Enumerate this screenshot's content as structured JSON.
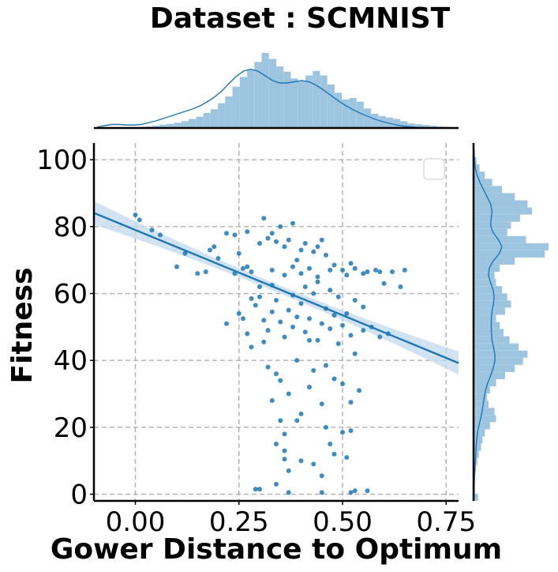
{
  "chart_data": {
    "type": "scatter",
    "title": "Dataset :  SCMNIST",
    "xlabel": "Gower Distance to Optimum",
    "ylabel": "Fitness",
    "xlim": [
      -0.1,
      0.78
    ],
    "ylim": [
      -2,
      105
    ],
    "xticks": [
      "0.00",
      "0.25",
      "0.50",
      "0.75"
    ],
    "xtick_values": [
      0.0,
      0.25,
      0.5,
      0.75
    ],
    "yticks": [
      "0",
      "20",
      "40",
      "60",
      "80",
      "100"
    ],
    "ytick_values": [
      0,
      20,
      40,
      60,
      80,
      100
    ],
    "grid": true,
    "grid_style": "dashed",
    "legend": "top-right (empty box)",
    "colors": {
      "points": "#1f77b4",
      "hist": "#9ec5e0",
      "band": "#c6dbef",
      "grid": "#b0b0b0",
      "axis": "#000000"
    },
    "regression": {
      "slope": -51.0,
      "intercept": 79.0,
      "ci_halfwidth_center": 1.2,
      "ci_halfwidth_edge": 3.5
    },
    "points": [
      [
        0.0,
        83.5
      ],
      [
        0.01,
        82.0
      ],
      [
        0.04,
        79.0
      ],
      [
        0.06,
        77.5
      ],
      [
        0.1,
        68.0
      ],
      [
        0.12,
        72.0
      ],
      [
        0.15,
        66.0
      ],
      [
        0.17,
        66.5
      ],
      [
        0.18,
        73.0
      ],
      [
        0.19,
        74.0
      ],
      [
        0.2,
        70.5
      ],
      [
        0.22,
        78.0
      ],
      [
        0.24,
        77.5
      ],
      [
        0.25,
        72.0
      ],
      [
        0.26,
        67.5
      ],
      [
        0.27,
        78.5
      ],
      [
        0.28,
        66.5
      ],
      [
        0.3,
        75.0
      ],
      [
        0.31,
        82.5
      ],
      [
        0.32,
        76.5
      ],
      [
        0.33,
        78.0
      ],
      [
        0.34,
        75.5
      ],
      [
        0.35,
        80.0
      ],
      [
        0.36,
        74.0
      ],
      [
        0.37,
        76.0
      ],
      [
        0.38,
        81.0
      ],
      [
        0.39,
        70.0
      ],
      [
        0.4,
        73.0
      ],
      [
        0.41,
        75.0
      ],
      [
        0.43,
        72.5
      ],
      [
        0.44,
        74.0
      ],
      [
        0.45,
        76.0
      ],
      [
        0.46,
        71.5
      ],
      [
        0.47,
        67.0
      ],
      [
        0.5,
        67.0
      ],
      [
        0.53,
        67.5
      ],
      [
        0.56,
        66.5
      ],
      [
        0.59,
        66.5
      ],
      [
        0.6,
        63.0
      ],
      [
        0.62,
        66.5
      ],
      [
        0.64,
        62.0
      ],
      [
        0.65,
        67.0
      ],
      [
        0.24,
        66.0
      ],
      [
        0.27,
        68.0
      ],
      [
        0.33,
        67.0
      ],
      [
        0.36,
        65.5
      ],
      [
        0.38,
        68.0
      ],
      [
        0.4,
        66.0
      ],
      [
        0.42,
        67.5
      ],
      [
        0.44,
        65.0
      ],
      [
        0.48,
        68.5
      ],
      [
        0.51,
        65.5
      ],
      [
        0.52,
        69.0
      ],
      [
        0.55,
        66.0
      ],
      [
        0.58,
        67.0
      ],
      [
        0.22,
        51.0
      ],
      [
        0.25,
        54.0
      ],
      [
        0.27,
        48.0
      ],
      [
        0.28,
        44.0
      ],
      [
        0.29,
        56.5
      ],
      [
        0.3,
        59.0
      ],
      [
        0.31,
        52.0
      ],
      [
        0.32,
        49.0
      ],
      [
        0.33,
        54.5
      ],
      [
        0.34,
        58.0
      ],
      [
        0.35,
        51.5
      ],
      [
        0.36,
        47.0
      ],
      [
        0.37,
        55.0
      ],
      [
        0.38,
        50.0
      ],
      [
        0.39,
        53.0
      ],
      [
        0.4,
        57.0
      ],
      [
        0.41,
        48.5
      ],
      [
        0.42,
        52.5
      ],
      [
        0.43,
        60.0
      ],
      [
        0.44,
        46.0
      ],
      [
        0.45,
        51.0
      ],
      [
        0.46,
        55.5
      ],
      [
        0.47,
        49.5
      ],
      [
        0.48,
        53.5
      ],
      [
        0.49,
        45.0
      ],
      [
        0.5,
        50.5
      ],
      [
        0.51,
        54.0
      ],
      [
        0.52,
        47.5
      ],
      [
        0.53,
        42.0
      ],
      [
        0.55,
        49.0
      ],
      [
        0.57,
        50.0
      ],
      [
        0.59,
        47.0
      ],
      [
        0.61,
        48.0
      ],
      [
        0.32,
        38.0
      ],
      [
        0.34,
        36.0
      ],
      [
        0.35,
        34.0
      ],
      [
        0.37,
        30.0
      ],
      [
        0.39,
        40.0
      ],
      [
        0.4,
        24.0
      ],
      [
        0.42,
        32.0
      ],
      [
        0.43,
        37.0
      ],
      [
        0.45,
        27.0
      ],
      [
        0.46,
        38.5
      ],
      [
        0.48,
        34.5
      ],
      [
        0.5,
        33.0
      ],
      [
        0.52,
        27.5
      ],
      [
        0.54,
        31.0
      ],
      [
        0.33,
        28.0
      ],
      [
        0.35,
        22.0
      ],
      [
        0.36,
        13.0
      ],
      [
        0.37,
        7.0
      ],
      [
        0.34,
        15.0
      ],
      [
        0.36,
        18.0
      ],
      [
        0.4,
        10.0
      ],
      [
        0.43,
        9.0
      ],
      [
        0.45,
        5.5
      ],
      [
        0.46,
        20.0
      ],
      [
        0.47,
        15.0
      ],
      [
        0.48,
        12.0
      ],
      [
        0.5,
        18.5
      ],
      [
        0.51,
        11.0
      ],
      [
        0.52,
        19.0
      ],
      [
        0.34,
        3.0
      ],
      [
        0.36,
        10.5
      ],
      [
        0.29,
        1.5
      ],
      [
        0.3,
        1.5
      ],
      [
        0.37,
        0.5
      ],
      [
        0.45,
        0.5
      ],
      [
        0.52,
        0.5
      ],
      [
        0.53,
        1.0
      ],
      [
        0.56,
        1.0
      ],
      [
        0.39,
        22.0
      ],
      [
        0.42,
        46.0
      ],
      [
        0.31,
        45.5
      ],
      [
        0.28,
        58.5
      ],
      [
        0.26,
        52.5
      ],
      [
        0.3,
        62.0
      ],
      [
        0.33,
        62.5
      ],
      [
        0.38,
        59.5
      ],
      [
        0.41,
        62.0
      ],
      [
        0.44,
        63.5
      ],
      [
        0.47,
        61.0
      ],
      [
        0.49,
        59.0
      ],
      [
        0.53,
        58.0
      ],
      [
        0.55,
        56.0
      ]
    ],
    "hist_x": [
      0.003,
      0.007,
      0.008,
      0.006,
      0.005,
      0.007,
      0.012,
      0.02,
      0.03,
      0.045,
      0.055,
      0.07,
      0.09,
      0.12,
      0.15,
      0.2,
      0.25,
      0.33,
      0.42,
      0.55,
      0.68,
      0.78,
      0.88,
      1.0,
      0.92,
      0.82,
      0.75,
      0.66,
      0.62,
      0.7,
      0.76,
      0.7,
      0.58,
      0.47,
      0.38,
      0.4,
      0.35,
      0.26,
      0.19,
      0.16,
      0.14,
      0.12,
      0.09,
      0.06,
      0.05,
      0.04,
      0.03,
      0.02,
      0.015,
      0.01
    ],
    "kde_x": [
      0.02,
      0.04,
      0.06,
      0.06,
      0.05,
      0.05,
      0.06,
      0.09,
      0.12,
      0.16,
      0.2,
      0.24,
      0.28,
      0.32,
      0.37,
      0.44,
      0.52,
      0.62,
      0.75,
      0.87,
      0.96,
      0.99,
      0.96,
      0.88,
      0.8,
      0.76,
      0.76,
      0.78,
      0.8,
      0.78,
      0.72,
      0.64,
      0.55,
      0.46,
      0.38,
      0.31,
      0.25,
      0.2,
      0.15,
      0.11,
      0.08,
      0.05,
      0.03,
      0.02,
      0.01,
      0.005,
      0.002,
      0.0,
      0.0,
      0.0
    ],
    "hist_y": [
      0.06,
      0.0,
      0.0,
      0.0,
      0.03,
      0.05,
      0.07,
      0.1,
      0.12,
      0.15,
      0.22,
      0.3,
      0.28,
      0.2,
      0.18,
      0.22,
      0.3,
      0.42,
      0.55,
      0.66,
      0.72,
      0.6,
      0.48,
      0.4,
      0.35,
      0.3,
      0.42,
      0.5,
      0.45,
      0.38,
      0.3,
      0.28,
      0.35,
      0.55,
      0.95,
      1.0,
      0.7,
      0.45,
      0.5,
      0.62,
      0.78,
      0.72,
      0.55,
      0.38,
      0.25,
      0.15,
      0.08,
      0.04,
      0.02,
      0.01
    ],
    "kde_y": [
      0.02,
      0.02,
      0.02,
      0.03,
      0.04,
      0.05,
      0.06,
      0.07,
      0.09,
      0.11,
      0.15,
      0.2,
      0.24,
      0.27,
      0.3,
      0.34,
      0.4,
      0.48,
      0.55,
      0.6,
      0.6,
      0.56,
      0.52,
      0.5,
      0.5,
      0.5,
      0.52,
      0.56,
      0.58,
      0.55,
      0.48,
      0.42,
      0.44,
      0.55,
      0.72,
      0.8,
      0.7,
      0.55,
      0.48,
      0.5,
      0.52,
      0.48,
      0.38,
      0.28,
      0.18,
      0.1,
      0.05,
      0.03,
      0.01,
      0.0
    ]
  }
}
